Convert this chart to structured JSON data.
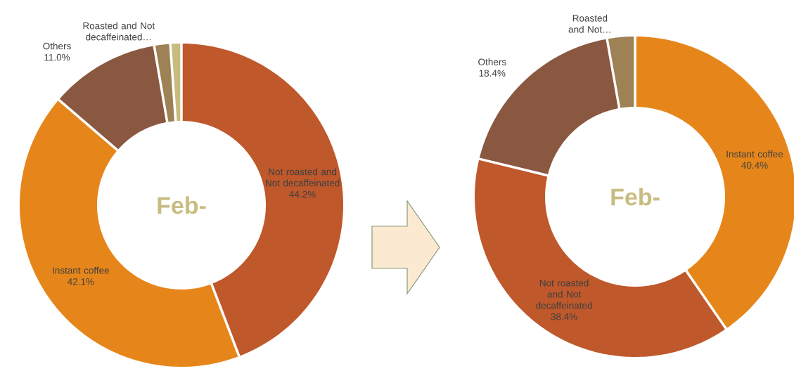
{
  "chart_data": [
    {
      "type": "donut",
      "annotations": [
        "Feb-"
      ],
      "categories": [
        "Not roasted and Not decaffeinated",
        "Instant coffee",
        "Others",
        "Roasted and Not decaffeinated…",
        null
      ],
      "values": [
        44.2,
        42.1,
        11.0,
        1.6,
        1.1
      ],
      "value_labels": [
        "44.2%",
        "42.1%",
        "11.0%",
        null,
        null
      ],
      "colors": [
        "#bf582b",
        "#e6861a",
        "#8a5741",
        "#9e8155",
        "#c9bb7f"
      ]
    },
    {
      "type": "donut",
      "annotations": [
        "Feb-"
      ],
      "categories": [
        "Instant coffee",
        "Not roasted and Not decaffeinated",
        "Others",
        "Roasted and Not…"
      ],
      "values": [
        40.4,
        38.4,
        18.4,
        2.8
      ],
      "value_labels": [
        "40.4%",
        "38.4%",
        "18.4%",
        null
      ],
      "colors": [
        "#e6861a",
        "#bf582b",
        "#8a5741",
        "#9e8155"
      ]
    }
  ]
}
